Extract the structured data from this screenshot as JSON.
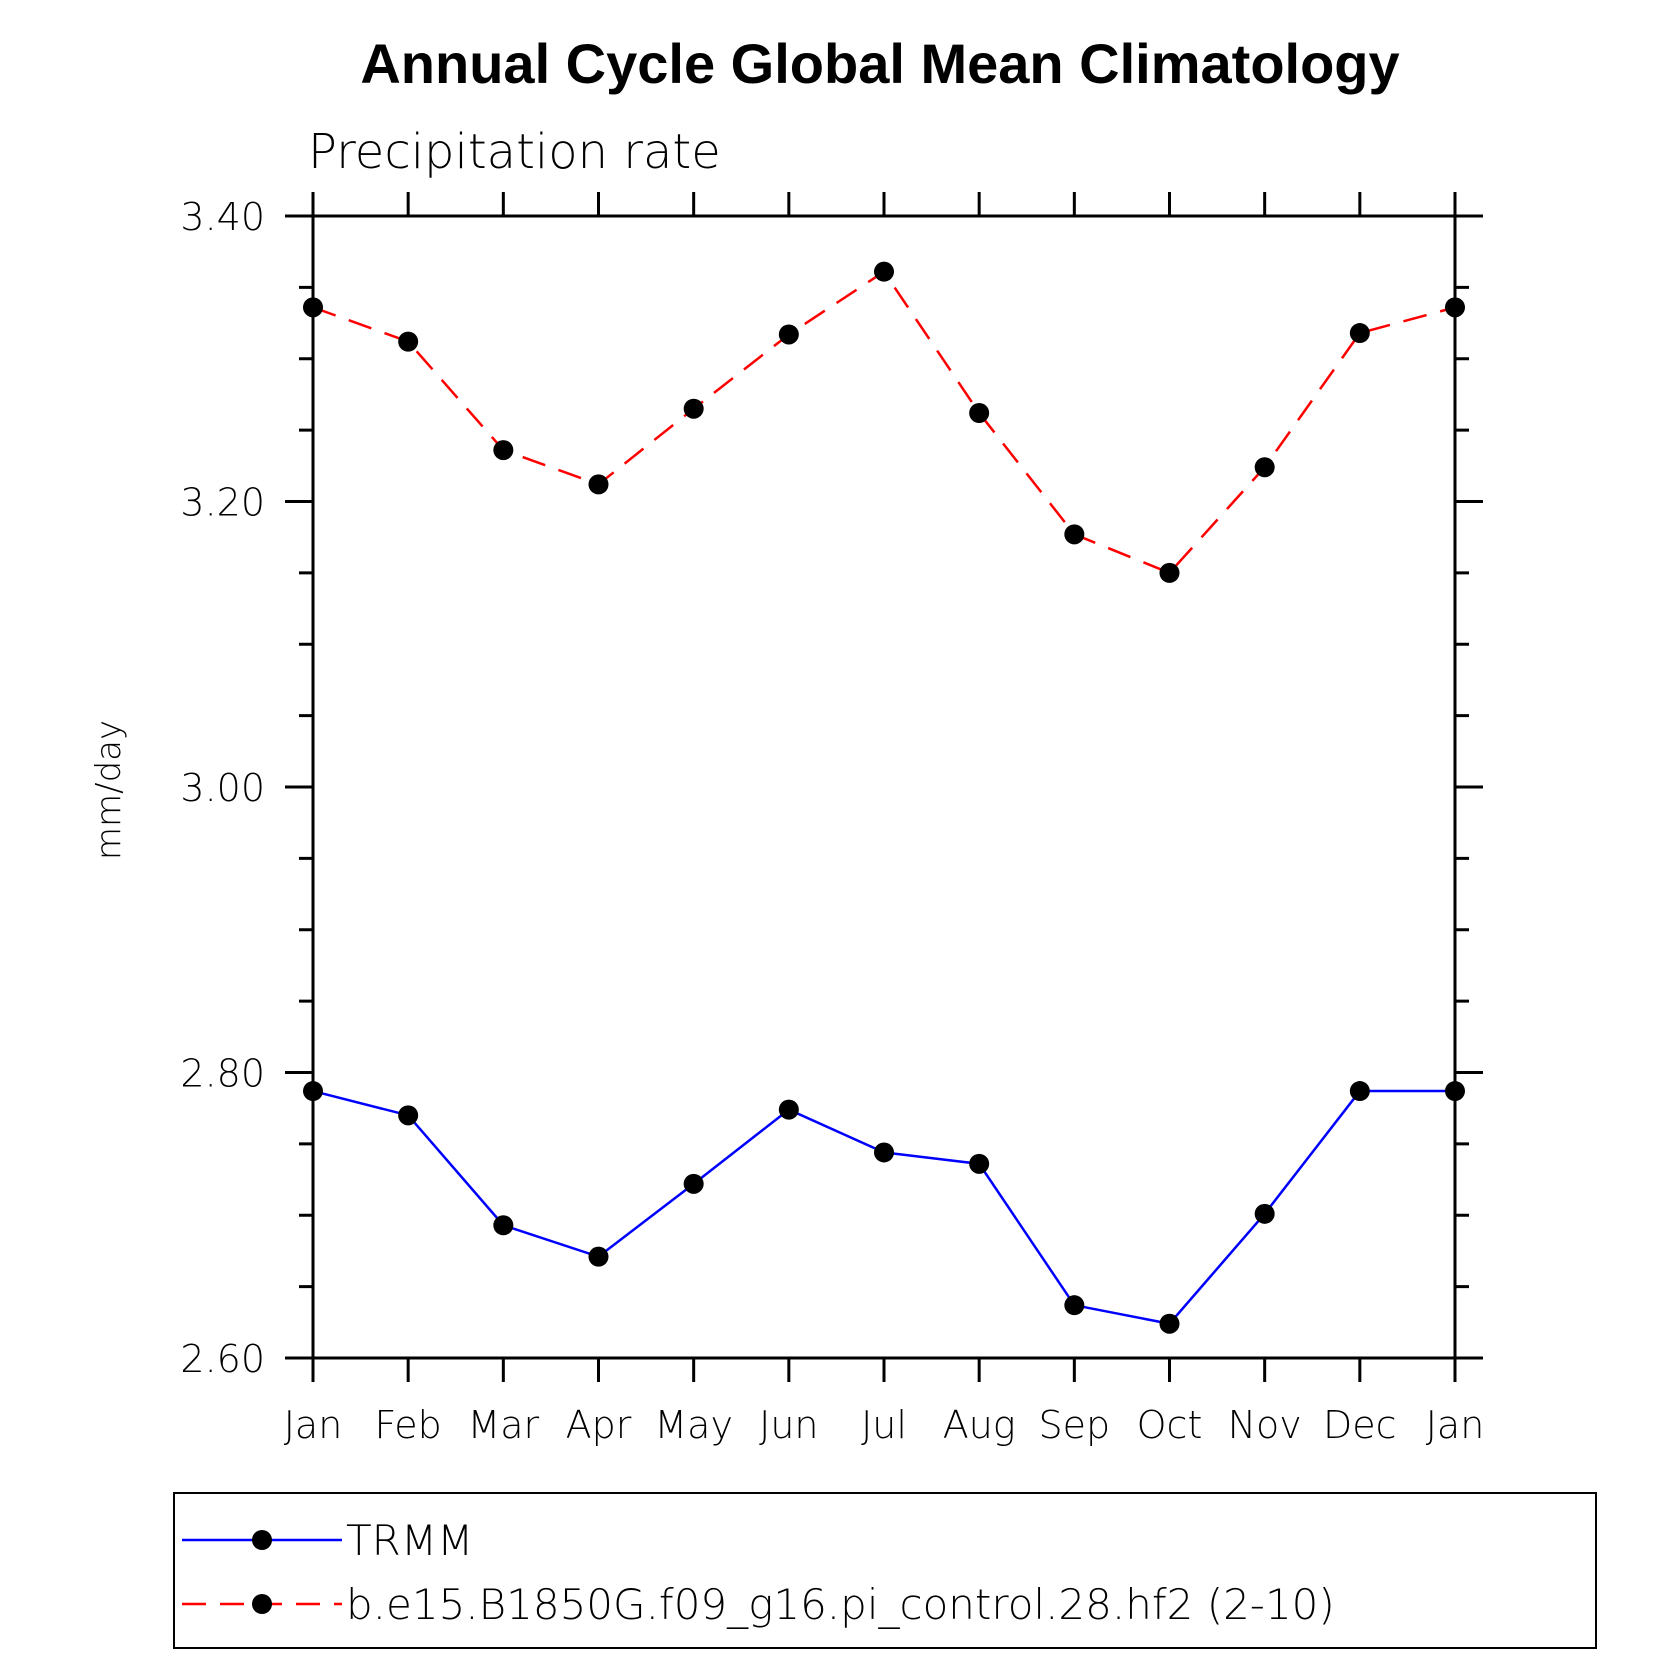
{
  "chart_data": {
    "type": "line",
    "title": "Annual Cycle Global Mean Climatology",
    "subtitle": "Precipitation rate",
    "xlabel": "",
    "ylabel": "mm/day",
    "categories": [
      "Jan",
      "Feb",
      "Mar",
      "Apr",
      "May",
      "Jun",
      "Jul",
      "Aug",
      "Sep",
      "Oct",
      "Nov",
      "Dec",
      "Jan"
    ],
    "y_ticks": [
      "3.40",
      "3.20",
      "3.00",
      "2.80",
      "2.60"
    ],
    "ylim": [
      2.6,
      3.4
    ],
    "y_major_step": 0.2,
    "y_minor_step": 0.05,
    "grid": false,
    "legend_position": "bottom",
    "series": [
      {
        "name": "TRMM",
        "color": "#0000ff",
        "line_style": "solid",
        "marker": "filled-circle",
        "values": [
          2.787,
          2.77,
          2.693,
          2.671,
          2.722,
          2.774,
          2.744,
          2.736,
          2.637,
          2.624,
          2.701,
          2.787,
          2.787
        ]
      },
      {
        "name": "b.e15.B1850G.f09_g16.pi_control.28.hf2 (2-10)",
        "color": "#ff0000",
        "line_style": "dashed",
        "marker": "filled-circle",
        "values": [
          3.336,
          3.312,
          3.236,
          3.212,
          3.265,
          3.317,
          3.361,
          3.262,
          3.177,
          3.15,
          3.224,
          3.318,
          3.336
        ]
      }
    ]
  }
}
